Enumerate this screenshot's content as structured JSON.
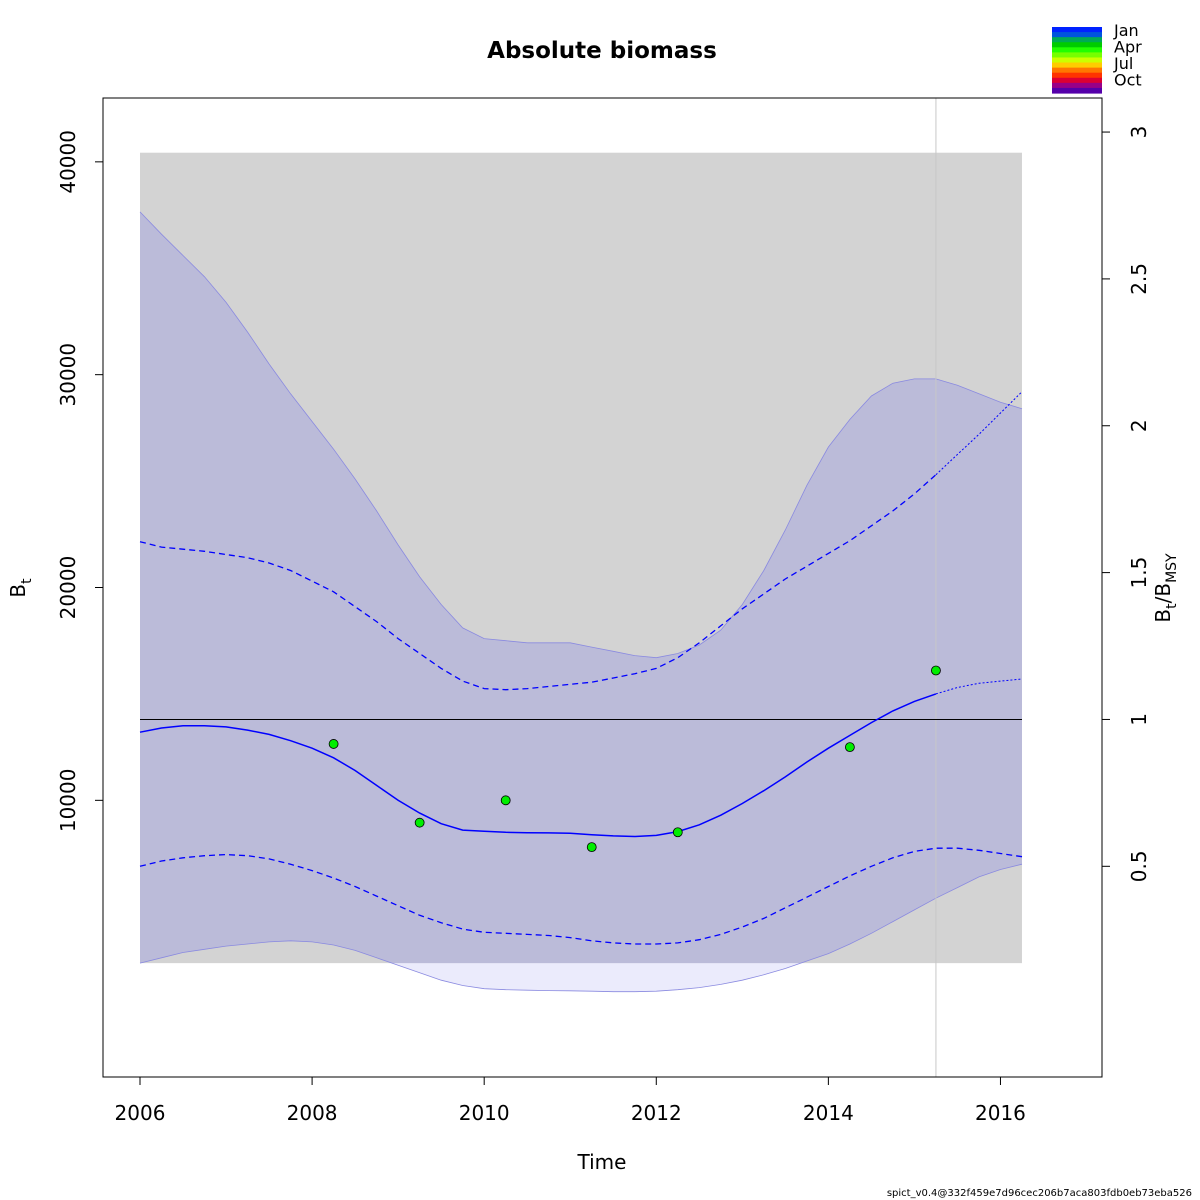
{
  "chart_data": {
    "type": "line",
    "title": "Absolute biomass",
    "xlabel": "Time",
    "ylabel": {
      "main": "B",
      "sub": "t"
    },
    "ylabel_right": {
      "main": "B",
      "sub1": "t",
      "sep": "/B",
      "sub2": "MSY"
    },
    "xlim": [
      2005.57,
      2017.18
    ],
    "ylim": [
      -3000,
      43000
    ],
    "x_ticks": [
      2006,
      2008,
      2010,
      2012,
      2014,
      2016
    ],
    "x_tick_labels": [
      "2006",
      "2008",
      "2010",
      "2012",
      "2014",
      "2016"
    ],
    "y_ticks": [
      10000,
      20000,
      30000,
      40000
    ],
    "y_tick_labels": [
      "10000",
      "20000",
      "30000",
      "40000"
    ],
    "bmsy": 13800,
    "right_ticks": [
      0.5,
      1,
      1.5,
      2,
      2.5,
      3
    ],
    "right_tick_labels": [
      "0.5",
      "1",
      "1.5",
      "2",
      "2.5",
      "3"
    ],
    "grid": false,
    "gray_band": {
      "x": [
        2006,
        2016.25
      ],
      "y": [
        2350,
        40430
      ]
    },
    "current_time": 2015.25,
    "outer_upper": {
      "x": [
        2006,
        2006.25,
        2006.5,
        2006.75,
        2007,
        2007.25,
        2007.5,
        2007.75,
        2008,
        2008.25,
        2008.5,
        2008.75,
        2009,
        2009.25,
        2009.5,
        2009.75,
        2010,
        2010.25,
        2010.5,
        2010.75,
        2011,
        2011.25,
        2011.5,
        2011.75,
        2012,
        2012.25,
        2012.5,
        2012.75,
        2013,
        2013.25,
        2013.5,
        2013.75,
        2014,
        2014.25,
        2014.5,
        2014.75,
        2015,
        2015.25,
        2015.5,
        2015.75,
        2016,
        2016.25
      ],
      "y": [
        37650,
        36600,
        35600,
        34600,
        33400,
        32000,
        30500,
        29100,
        27800,
        26500,
        25100,
        23600,
        22000,
        20500,
        19200,
        18100,
        17600,
        17500,
        17400,
        17400,
        17400,
        17200,
        17000,
        16800,
        16700,
        16900,
        17300,
        18000,
        19200,
        20800,
        22700,
        24800,
        26600,
        27900,
        29000,
        29600,
        29800,
        29800,
        29500,
        29100,
        28700,
        28400
      ]
    },
    "outer_lower": {
      "x": [
        2006,
        2006.25,
        2006.5,
        2006.75,
        2007,
        2007.25,
        2007.5,
        2007.75,
        2008,
        2008.25,
        2008.5,
        2008.75,
        2009,
        2009.25,
        2009.5,
        2009.75,
        2010,
        2010.25,
        2010.5,
        2010.75,
        2011,
        2011.25,
        2011.5,
        2011.75,
        2012,
        2012.25,
        2012.5,
        2012.75,
        2013,
        2013.25,
        2013.5,
        2013.75,
        2014,
        2014.25,
        2014.5,
        2014.75,
        2015,
        2015.25,
        2015.5,
        2015.75,
        2016,
        2016.25
      ],
      "y": [
        2350,
        2600,
        2850,
        3000,
        3150,
        3250,
        3350,
        3400,
        3350,
        3200,
        2950,
        2600,
        2250,
        1900,
        1550,
        1300,
        1150,
        1100,
        1080,
        1060,
        1050,
        1030,
        1010,
        1010,
        1030,
        1100,
        1200,
        1350,
        1550,
        1800,
        2100,
        2450,
        2800,
        3250,
        3750,
        4300,
        4850,
        5400,
        5900,
        6400,
        6750,
        7000
      ]
    },
    "ci_upper": {
      "x": [
        2006,
        2006.25,
        2006.5,
        2006.75,
        2007,
        2007.25,
        2007.5,
        2007.75,
        2008,
        2008.25,
        2008.5,
        2008.75,
        2009,
        2009.25,
        2009.5,
        2009.75,
        2010,
        2010.25,
        2010.5,
        2010.75,
        2011,
        2011.25,
        2011.5,
        2011.75,
        2012,
        2012.25,
        2012.5,
        2012.75,
        2013,
        2013.25,
        2013.5,
        2013.75,
        2014,
        2014.25,
        2014.5,
        2014.75,
        2015,
        2015.25
      ],
      "y": [
        22150,
        21900,
        21800,
        21700,
        21550,
        21400,
        21150,
        20800,
        20300,
        19800,
        19100,
        18400,
        17600,
        16900,
        16200,
        15600,
        15250,
        15200,
        15250,
        15350,
        15450,
        15550,
        15750,
        15950,
        16200,
        16700,
        17400,
        18200,
        19000,
        19700,
        20400,
        21000,
        21600,
        22200,
        22900,
        23600,
        24400,
        25300
      ]
    },
    "ci_upper_forecast": {
      "x": [
        2015.25,
        2015.5,
        2015.75,
        2016,
        2016.25
      ],
      "y": [
        25300,
        26250,
        27200,
        28200,
        29200
      ]
    },
    "ci_lower": {
      "x": [
        2006,
        2006.25,
        2006.5,
        2006.75,
        2007,
        2007.25,
        2007.5,
        2007.75,
        2008,
        2008.25,
        2008.5,
        2008.75,
        2009,
        2009.25,
        2009.5,
        2009.75,
        2010,
        2010.25,
        2010.5,
        2010.75,
        2011,
        2011.25,
        2011.5,
        2011.75,
        2012,
        2012.25,
        2012.5,
        2012.75,
        2013,
        2013.25,
        2013.5,
        2013.75,
        2014,
        2014.25,
        2014.5,
        2014.75,
        2015,
        2015.25,
        2015.5,
        2015.75,
        2016,
        2016.25
      ],
      "y": [
        6900,
        7150,
        7300,
        7400,
        7450,
        7400,
        7250,
        7000,
        6700,
        6350,
        5950,
        5500,
        5050,
        4600,
        4250,
        3950,
        3800,
        3750,
        3700,
        3650,
        3550,
        3400,
        3300,
        3250,
        3250,
        3300,
        3450,
        3700,
        4050,
        4450,
        4950,
        5450,
        5950,
        6450,
        6900,
        7300,
        7600,
        7750,
        7750,
        7650,
        7500,
        7350
      ]
    },
    "estimate": {
      "x": [
        2006,
        2006.25,
        2006.5,
        2006.75,
        2007,
        2007.25,
        2007.5,
        2007.75,
        2008,
        2008.25,
        2008.5,
        2008.75,
        2009,
        2009.25,
        2009.5,
        2009.75,
        2010,
        2010.25,
        2010.5,
        2010.75,
        2011,
        2011.25,
        2011.5,
        2011.75,
        2012,
        2012.25,
        2012.5,
        2012.75,
        2013,
        2013.25,
        2013.5,
        2013.75,
        2014,
        2014.25,
        2014.5,
        2014.75,
        2015,
        2015.25
      ],
      "y": [
        13200,
        13400,
        13500,
        13500,
        13450,
        13300,
        13100,
        12800,
        12450,
        12000,
        11400,
        10700,
        10000,
        9400,
        8900,
        8600,
        8550,
        8500,
        8480,
        8470,
        8450,
        8380,
        8330,
        8300,
        8350,
        8530,
        8850,
        9300,
        9850,
        10450,
        11100,
        11800,
        12450,
        13050,
        13650,
        14200,
        14650,
        15000
      ]
    },
    "estimate_forecast": {
      "x": [
        2015.25,
        2015.5,
        2015.75,
        2016,
        2016.25
      ],
      "y": [
        15000,
        15300,
        15500,
        15600,
        15700
      ]
    },
    "points": {
      "x": [
        2008.25,
        2009.25,
        2010.25,
        2011.25,
        2012.25,
        2014.25,
        2015.25
      ],
      "y": [
        12650,
        8950,
        10000,
        7800,
        8500,
        12500,
        16100
      ],
      "color": "#00ee00"
    },
    "legend": {
      "placement": "top-right",
      "labels": [
        "Jan",
        "Apr",
        "Jul",
        "Oct"
      ],
      "colors": [
        "#0022ff",
        "#0055dd",
        "#00aa55",
        "#00cc00",
        "#22ff00",
        "#77ff00",
        "#ccff00",
        "#ffcc00",
        "#ff7700",
        "#ff3300",
        "#dd0033",
        "#990088",
        "#5500aa"
      ]
    },
    "colors": {
      "estimate": "#0000ff",
      "ci_fill": "#bbbbd9",
      "outer_fill": "#e3e3fb",
      "gray_band": "#d3d3d3",
      "outer_line": "#8a8ae0"
    }
  },
  "footer": "spict_v0.4@332f459e7d96cec206b7aca803fdb0eb73eba526"
}
